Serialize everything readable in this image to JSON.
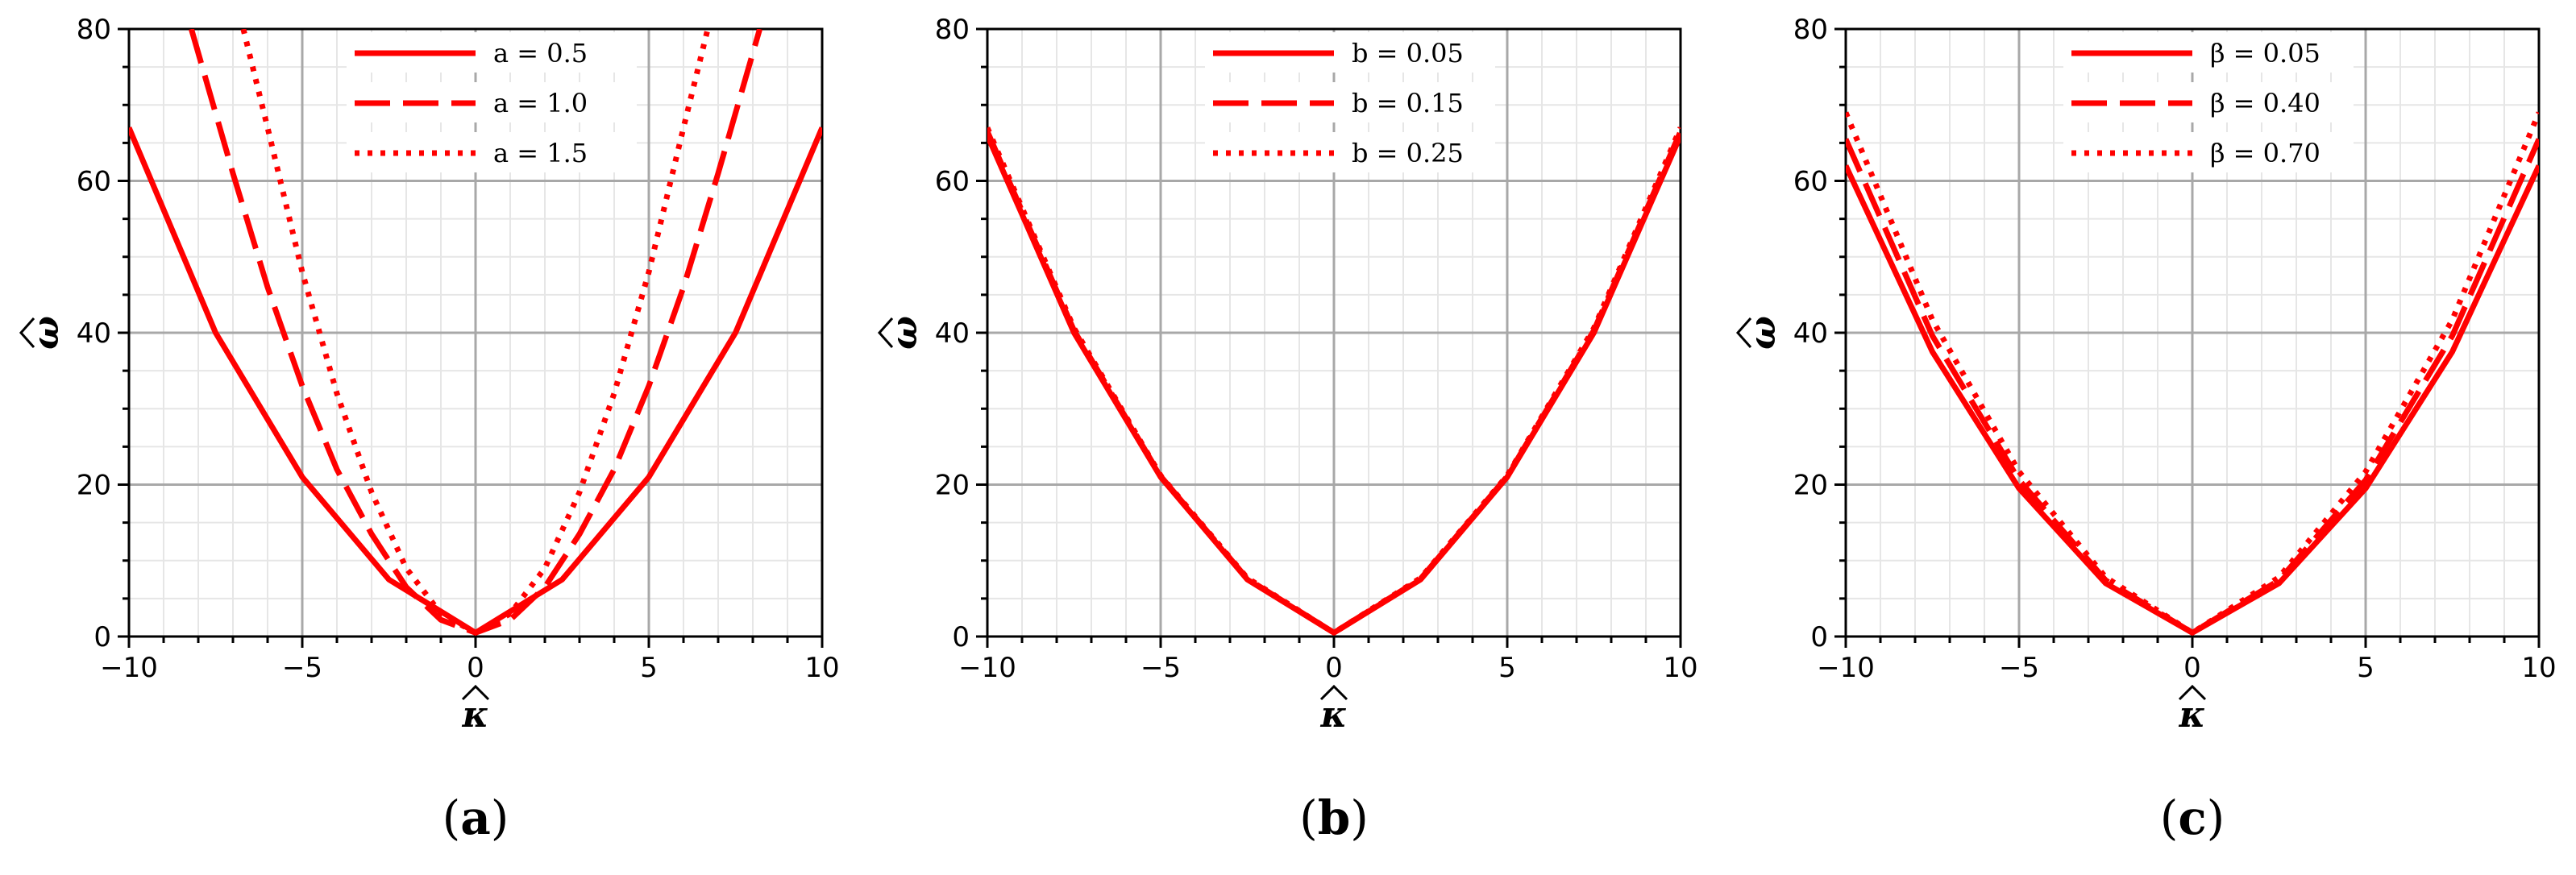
{
  "chart_data": [
    {
      "type": "line",
      "caption_open": "(",
      "caption_letter": "a",
      "caption_close": ")",
      "xlabel": "κ",
      "ylabel": "ω",
      "xlim": [
        -10,
        10
      ],
      "ylim": [
        0,
        80
      ],
      "xticks": [
        -10,
        -5,
        0,
        5,
        10
      ],
      "xtick_labels": [
        "−10",
        "−5",
        "0",
        "5",
        "10"
      ],
      "yticks": [
        0,
        20,
        40,
        60,
        80
      ],
      "ytick_labels": [
        "0",
        "20",
        "40",
        "60",
        "80"
      ],
      "grid": true,
      "legend_position": "top-center",
      "color": "#ff0000",
      "series": [
        {
          "name": "a = 0.5",
          "style": "solid",
          "x": [
            -10,
            -7.5,
            -5,
            -2.5,
            0,
            2.5,
            5,
            7.5,
            10
          ],
          "y": [
            67,
            40,
            21,
            7.5,
            0.5,
            7.5,
            21,
            40,
            67
          ]
        },
        {
          "name": "a = 1.0",
          "style": "dashed",
          "x": [
            -8.2,
            -7,
            -6,
            -5,
            -4,
            -3,
            -2,
            -1,
            0,
            1,
            2,
            3,
            4,
            5,
            6,
            7,
            8.2
          ],
          "y": [
            80,
            61,
            46,
            33,
            22,
            13.5,
            6.5,
            2.2,
            0.5,
            2.2,
            6.5,
            13.5,
            22,
            33,
            46,
            61,
            80
          ]
        },
        {
          "name": "a = 1.5",
          "style": "dotted",
          "x": [
            -6.7,
            -6,
            -5,
            -4,
            -3,
            -2,
            -1,
            0,
            1,
            2,
            3,
            4,
            5,
            6,
            6.7
          ],
          "y": [
            80,
            67,
            48,
            32,
            19,
            9,
            3,
            0.5,
            3,
            9,
            19,
            32,
            48,
            67,
            80
          ]
        }
      ]
    },
    {
      "type": "line",
      "caption_open": "(",
      "caption_letter": "b",
      "caption_close": ")",
      "xlabel": "κ",
      "ylabel": "ω",
      "xlim": [
        -10,
        10
      ],
      "ylim": [
        0,
        80
      ],
      "xticks": [
        -10,
        -5,
        0,
        5,
        10
      ],
      "xtick_labels": [
        "−10",
        "−5",
        "0",
        "5",
        "10"
      ],
      "yticks": [
        0,
        20,
        40,
        60,
        80
      ],
      "ytick_labels": [
        "0",
        "20",
        "40",
        "60",
        "80"
      ],
      "grid": true,
      "legend_position": "top-center",
      "color": "#ff0000",
      "series": [
        {
          "name": "b = 0.05",
          "style": "solid",
          "x": [
            -10,
            -7.5,
            -5,
            -2.5,
            0,
            2.5,
            5,
            7.5,
            10
          ],
          "y": [
            66,
            40,
            21,
            7.5,
            0.5,
            7.5,
            21,
            40,
            66
          ]
        },
        {
          "name": "b = 0.15",
          "style": "dashed",
          "x": [
            -10,
            -7.5,
            -5,
            -2.5,
            0,
            2.5,
            5,
            7.5,
            10
          ],
          "y": [
            66.5,
            40.3,
            21.1,
            7.6,
            0.5,
            7.6,
            21.1,
            40.3,
            66.5
          ]
        },
        {
          "name": "b = 0.25",
          "style": "dotted",
          "x": [
            -10,
            -7.5,
            -5,
            -2.5,
            0,
            2.5,
            5,
            7.5,
            10
          ],
          "y": [
            67,
            40.6,
            21.2,
            7.7,
            0.5,
            7.7,
            21.2,
            40.6,
            67
          ]
        }
      ]
    },
    {
      "type": "line",
      "caption_open": "(",
      "caption_letter": "c",
      "caption_close": ")",
      "xlabel": "κ",
      "ylabel": "ω",
      "xlim": [
        -10,
        10
      ],
      "ylim": [
        0,
        80
      ],
      "xticks": [
        -10,
        -5,
        0,
        5,
        10
      ],
      "xtick_labels": [
        "−10",
        "−5",
        "0",
        "5",
        "10"
      ],
      "yticks": [
        0,
        20,
        40,
        60,
        80
      ],
      "ytick_labels": [
        "0",
        "20",
        "40",
        "60",
        "80"
      ],
      "grid": true,
      "legend_position": "top-center",
      "color": "#ff0000",
      "series": [
        {
          "name": "β = 0.05",
          "style": "solid",
          "x": [
            -10,
            -7.5,
            -5,
            -2.5,
            0,
            2.5,
            5,
            7.5,
            10
          ],
          "y": [
            62,
            37.5,
            19.5,
            7,
            0.5,
            7,
            19.5,
            37.5,
            62
          ]
        },
        {
          "name": "β = 0.40",
          "style": "dashed",
          "x": [
            -10,
            -7.5,
            -5,
            -2.5,
            0,
            2.5,
            5,
            7.5,
            10
          ],
          "y": [
            65.5,
            39.6,
            20.6,
            7.4,
            0.5,
            7.4,
            20.6,
            39.6,
            65.5
          ]
        },
        {
          "name": "β = 0.70",
          "style": "dotted",
          "x": [
            -10,
            -7.5,
            -5,
            -2.5,
            0,
            2.5,
            5,
            7.5,
            10
          ],
          "y": [
            69,
            41.7,
            21.7,
            7.8,
            0.5,
            7.8,
            21.7,
            41.7,
            69
          ]
        }
      ]
    }
  ]
}
